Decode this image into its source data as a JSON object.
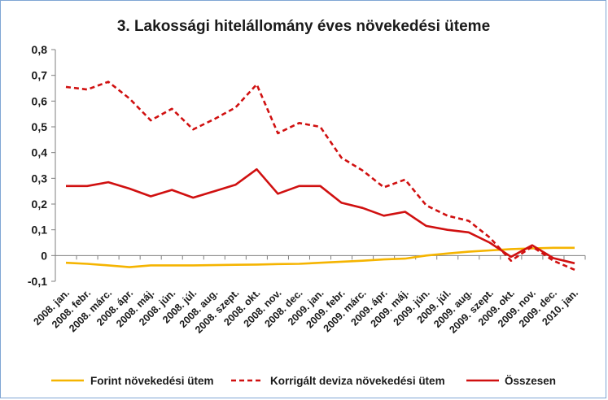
{
  "chart_data": {
    "type": "line",
    "title": "3. Lakossági hitelállomány éves növekedési üteme",
    "xlabel": "",
    "ylabel": "",
    "ylim": [
      -0.1,
      0.8
    ],
    "yticks": [
      "-0,1",
      "0",
      "0,1",
      "0,2",
      "0,3",
      "0,4",
      "0,5",
      "0,6",
      "0,7",
      "0,8"
    ],
    "grid": false,
    "legend_position": "bottom",
    "categories": [
      "2008. jan.",
      "2008. febr.",
      "2008. márc.",
      "2008. ápr.",
      "2008. máj.",
      "2008. jún.",
      "2008. júl.",
      "2008. aug.",
      "2008. szept.",
      "2008. okt.",
      "2008. nov.",
      "2008. dec.",
      "2009. jan.",
      "2009. febr.",
      "2009. márc.",
      "2009. ápr.",
      "2009. máj.",
      "2009. jún.",
      "2009. júl.",
      "2009. aug.",
      "2009. szept.",
      "2009. okt.",
      "2009. nov.",
      "2009. dec.",
      "2010. jan."
    ],
    "series": [
      {
        "name": "Forint növekedési ütem",
        "color": "#f5b400",
        "style": "solid",
        "values": [
          -0.028,
          -0.032,
          -0.038,
          -0.045,
          -0.038,
          -0.038,
          -0.038,
          -0.037,
          -0.036,
          -0.035,
          -0.033,
          -0.032,
          -0.028,
          -0.024,
          -0.02,
          -0.015,
          -0.012,
          0.0,
          0.008,
          0.015,
          0.02,
          0.025,
          0.028,
          0.03,
          0.03
        ]
      },
      {
        "name": "Korrigált deviza növekedési ütem",
        "color": "#d01010",
        "style": "dashed",
        "values": [
          0.655,
          0.645,
          0.675,
          0.61,
          0.525,
          0.57,
          0.49,
          0.53,
          0.575,
          0.665,
          0.475,
          0.515,
          0.5,
          0.38,
          0.33,
          0.265,
          0.295,
          0.195,
          0.155,
          0.135,
          0.07,
          -0.02,
          0.035,
          -0.02,
          -0.055
        ]
      },
      {
        "name": "Összesen",
        "color": "#d01010",
        "style": "solid",
        "values": [
          0.27,
          0.27,
          0.285,
          0.26,
          0.23,
          0.255,
          0.225,
          0.25,
          0.275,
          0.335,
          0.24,
          0.27,
          0.27,
          0.205,
          0.185,
          0.155,
          0.17,
          0.115,
          0.1,
          0.09,
          0.05,
          -0.005,
          0.04,
          -0.01,
          -0.03
        ]
      }
    ]
  }
}
